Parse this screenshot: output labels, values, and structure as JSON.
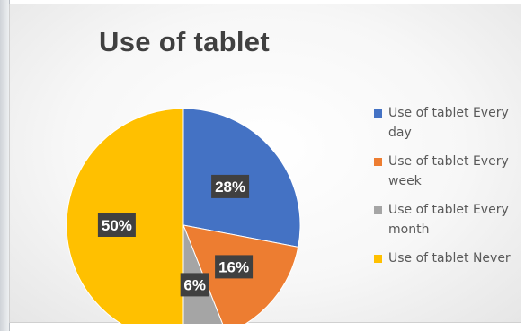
{
  "chart_data": {
    "type": "pie",
    "title": "Use of tablet",
    "categories": [
      "Use of tablet Every day",
      "Use of tablet Every week",
      "Use of tablet Every month",
      "Use of tablet Never"
    ],
    "values": [
      28,
      16,
      6,
      50
    ],
    "data_labels": [
      "28%",
      "16%",
      "6%",
      "50%"
    ],
    "colors": [
      "#4472C4",
      "#ED7D31",
      "#A5A5A5",
      "#FFC000"
    ],
    "legend_position": "right",
    "legend": [
      {
        "line1": "Use of tablet Every",
        "line2": "day"
      },
      {
        "line1": "Use of tablet Every",
        "line2": "week"
      },
      {
        "line1": "Use of tablet Every",
        "line2": "month"
      },
      {
        "line1": "Use of tablet Never",
        "line2": ""
      }
    ]
  }
}
